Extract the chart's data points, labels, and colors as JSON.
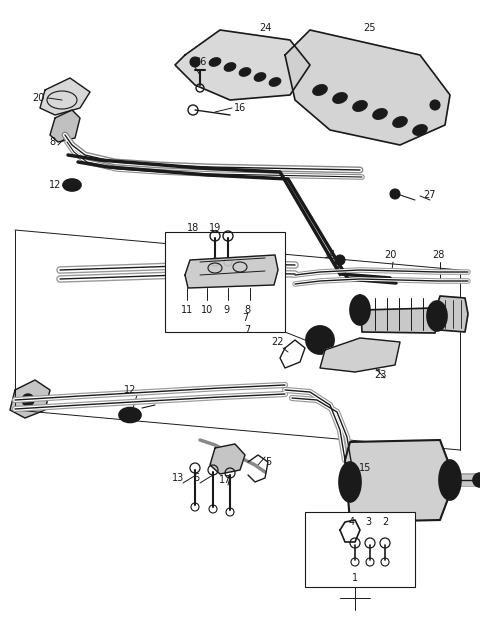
{
  "bg_color": "#ffffff",
  "line_color": "#1a1a1a",
  "fig_width": 4.8,
  "fig_height": 6.24,
  "dpi": 100
}
